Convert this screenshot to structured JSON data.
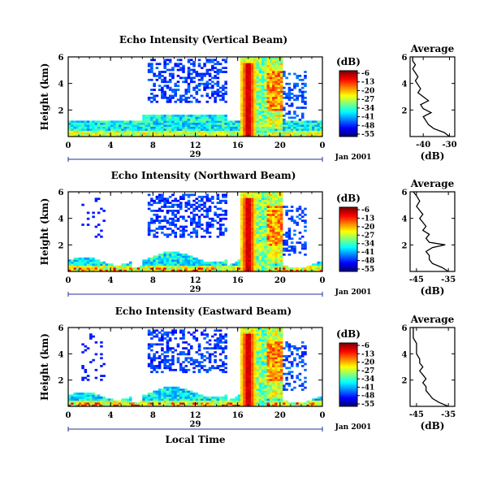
{
  "chart_data": [
    {
      "type": "heatmap",
      "title": "Echo Intensity (Vertical Beam)",
      "ylabel": "Height (km)",
      "xlim": [
        0,
        24
      ],
      "ylim": [
        0,
        6
      ],
      "xticks": [
        "0",
        "4",
        "8",
        "12",
        "16",
        "20",
        "0"
      ],
      "yticks": [
        "2",
        "4",
        "6"
      ],
      "date_label": "29",
      "date_suffix": "Jan 2001",
      "colorbar": {
        "label": "(dB)",
        "ticks": [
          "-6",
          "-13",
          "-20",
          "-27",
          "-34",
          "-41",
          "-48",
          "-55"
        ]
      },
      "average": {
        "title": "Average",
        "xlabel": "(dB)",
        "xticks": [
          "-40",
          "-30"
        ],
        "xlim": [
          -45,
          -28
        ],
        "ylim": [
          0,
          6
        ],
        "profile": [
          [
            0.0,
            -30
          ],
          [
            0.3,
            -32
          ],
          [
            0.6,
            -36
          ],
          [
            0.9,
            -38
          ],
          [
            1.2,
            -39
          ],
          [
            1.5,
            -40
          ],
          [
            1.8,
            -37
          ],
          [
            2.1,
            -40
          ],
          [
            2.4,
            -41
          ],
          [
            2.7,
            -38
          ],
          [
            3.0,
            -40
          ],
          [
            3.3,
            -42
          ],
          [
            3.6,
            -41
          ],
          [
            3.9,
            -42
          ],
          [
            4.2,
            -43
          ],
          [
            4.5,
            -42
          ],
          [
            4.8,
            -43
          ],
          [
            5.1,
            -44
          ],
          [
            5.4,
            -43
          ],
          [
            5.7,
            -44
          ],
          [
            6.0,
            -44
          ]
        ]
      }
    },
    {
      "type": "heatmap",
      "title": "Echo Intensity (Northward Beam)",
      "ylabel": "Height (km)",
      "xlim": [
        0,
        24
      ],
      "ylim": [
        0,
        6
      ],
      "xticks": [
        "0",
        "4",
        "8",
        "12",
        "16",
        "20",
        "0"
      ],
      "yticks": [
        "2",
        "4",
        "6"
      ],
      "date_label": "29",
      "date_suffix": "Jan 2001",
      "colorbar": {
        "label": "(dB)",
        "ticks": [
          "-6",
          "-13",
          "-20",
          "-27",
          "-34",
          "-41",
          "-48",
          "-55"
        ]
      },
      "average": {
        "title": "Average",
        "xlabel": "(dB)",
        "xticks": [
          "-45",
          "-35"
        ],
        "xlim": [
          -47,
          -33
        ],
        "ylim": [
          0,
          6
        ],
        "profile": [
          [
            0.0,
            -35
          ],
          [
            0.3,
            -37
          ],
          [
            0.6,
            -40
          ],
          [
            0.9,
            -41
          ],
          [
            1.2,
            -41
          ],
          [
            1.5,
            -42
          ],
          [
            1.8,
            -40
          ],
          [
            2.0,
            -36
          ],
          [
            2.2,
            -41
          ],
          [
            2.5,
            -42
          ],
          [
            2.8,
            -41
          ],
          [
            3.1,
            -43
          ],
          [
            3.4,
            -42
          ],
          [
            3.7,
            -43
          ],
          [
            4.0,
            -44
          ],
          [
            4.3,
            -43
          ],
          [
            4.6,
            -44
          ],
          [
            4.9,
            -45
          ],
          [
            5.3,
            -44
          ],
          [
            5.7,
            -45
          ],
          [
            6.0,
            -46
          ]
        ]
      }
    },
    {
      "type": "heatmap",
      "title": "Echo Intensity (Eastward Beam)",
      "ylabel": "Height (km)",
      "xlabel": "Local Time",
      "xlim": [
        0,
        24
      ],
      "ylim": [
        0,
        6
      ],
      "xticks": [
        "0",
        "4",
        "8",
        "12",
        "16",
        "20",
        "0"
      ],
      "yticks": [
        "2",
        "4",
        "6"
      ],
      "date_label": "29",
      "date_suffix": "Jan 2001",
      "colorbar": {
        "label": "(dB)",
        "ticks": [
          "-6",
          "-13",
          "-20",
          "-27",
          "-34",
          "-41",
          "-48",
          "-55"
        ]
      },
      "average": {
        "title": "Average",
        "xlabel": "(dB)",
        "xticks": [
          "-45",
          "-35"
        ],
        "xlim": [
          -47,
          -33
        ],
        "ylim": [
          0,
          6
        ],
        "profile": [
          [
            0.0,
            -35
          ],
          [
            0.3,
            -38
          ],
          [
            0.6,
            -40
          ],
          [
            0.9,
            -41
          ],
          [
            1.2,
            -42
          ],
          [
            1.5,
            -42
          ],
          [
            1.8,
            -43
          ],
          [
            2.1,
            -42
          ],
          [
            2.4,
            -43
          ],
          [
            2.7,
            -44
          ],
          [
            3.0,
            -43
          ],
          [
            3.3,
            -44
          ],
          [
            3.6,
            -44
          ],
          [
            4.0,
            -45
          ],
          [
            4.4,
            -45
          ],
          [
            4.8,
            -45
          ],
          [
            5.2,
            -46
          ],
          [
            5.6,
            -46
          ],
          [
            6.0,
            -46
          ]
        ]
      }
    }
  ]
}
